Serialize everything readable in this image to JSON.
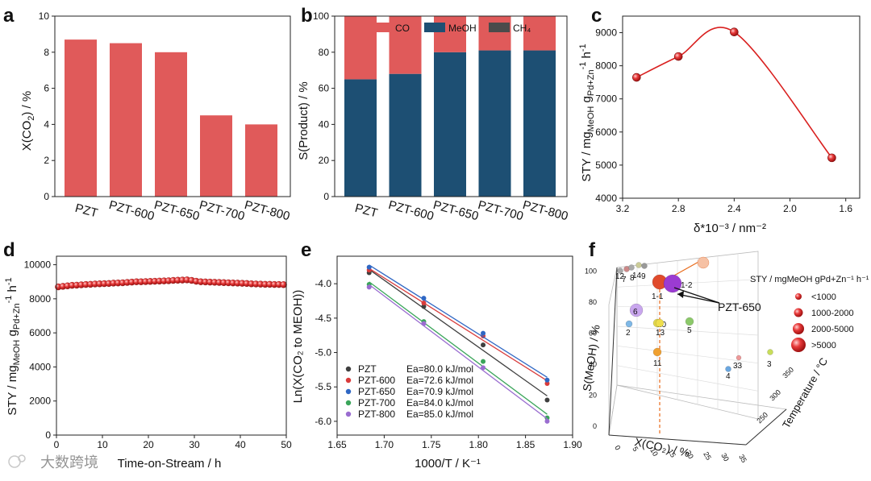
{
  "colors": {
    "red": "#e05a5a",
    "navy": "#1d4f73",
    "gray": "#4b4b4b",
    "ball": "#d9201f"
  },
  "watermark": "大数跨境",
  "chart_data": [
    {
      "id": "a",
      "panel_label": "a",
      "type": "bar",
      "categories": [
        "PZT",
        "PZT-600",
        "PZT-650",
        "PZT-700",
        "PZT-800"
      ],
      "values": [
        8.7,
        8.5,
        8.0,
        4.5,
        4.0
      ],
      "ylabel": "X(CO2) / %",
      "ylim": [
        0,
        10
      ],
      "yticks": [
        "0",
        "2",
        "4",
        "6",
        "8",
        "10"
      ]
    },
    {
      "id": "b",
      "panel_label": "b",
      "type": "bar",
      "stacked": true,
      "categories": [
        "PZT",
        "PZT-600",
        "PZT-650",
        "PZT-700",
        "PZT-800"
      ],
      "series": [
        {
          "name": "CO",
          "values": [
            35,
            32,
            20,
            19,
            19
          ]
        },
        {
          "name": "MeOH",
          "values": [
            65,
            68,
            80,
            81,
            81
          ]
        },
        {
          "name": "CH4",
          "values": [
            0,
            0,
            0,
            0,
            0
          ]
        }
      ],
      "legend": [
        "CO",
        "MeOH",
        "CH₄"
      ],
      "ylabel": "S(Product) / %",
      "ylim": [
        0,
        100
      ],
      "yticks": [
        "0",
        "20",
        "40",
        "60",
        "80",
        "100"
      ]
    },
    {
      "id": "c",
      "panel_label": "c",
      "type": "line",
      "x": [
        3.1,
        2.8,
        2.4,
        1.7
      ],
      "y": [
        7650,
        8280,
        9020,
        5220
      ],
      "xlabel": "δ*10⁻³ / nm⁻²",
      "ylabel": "STY / mgMeOH gPd+Zn⁻¹ h⁻¹",
      "xlim": [
        3.2,
        1.5
      ],
      "ylim": [
        4000,
        9500
      ],
      "xticks": [
        "3.2",
        "2.8",
        "2.4",
        "2.0",
        "1.6"
      ],
      "yticks": [
        "4000",
        "5000",
        "6000",
        "7000",
        "8000",
        "9000"
      ]
    },
    {
      "id": "d",
      "panel_label": "d",
      "type": "scatter",
      "x": [
        0,
        1,
        2,
        3,
        4,
        5,
        6,
        7,
        8,
        9,
        10,
        11,
        12,
        13,
        14,
        15,
        16,
        17,
        18,
        19,
        20,
        21,
        22,
        23,
        24,
        25,
        26,
        27,
        28,
        29,
        30,
        31,
        32,
        33,
        34,
        35,
        36,
        37,
        38,
        39,
        40,
        41,
        42,
        43,
        44,
        45,
        46,
        47,
        48,
        49
      ],
      "y": [
        8700,
        8730,
        8760,
        8790,
        8800,
        8820,
        8840,
        8850,
        8870,
        8880,
        8890,
        8900,
        8920,
        8930,
        8940,
        8960,
        8980,
        9000,
        9000,
        9010,
        9020,
        9030,
        9040,
        9050,
        9060,
        9080,
        9090,
        9100,
        9110,
        9080,
        9030,
        9000,
        8990,
        8980,
        8970,
        8960,
        8950,
        8940,
        8930,
        8920,
        8910,
        8900,
        8880,
        8870,
        8860,
        8850,
        8850,
        8840,
        8840,
        8830
      ],
      "xlabel": "Time-on-Stream / h",
      "ylabel": "STY / mgMeOH gPd+Zn⁻¹ h⁻¹",
      "xlim": [
        0,
        50
      ],
      "ylim": [
        0,
        10500
      ],
      "xticks": [
        "0",
        "10",
        "20",
        "30",
        "40",
        "50"
      ],
      "yticks": [
        "0",
        "2000",
        "4000",
        "6000",
        "8000",
        "10000"
      ]
    },
    {
      "id": "e",
      "panel_label": "e",
      "type": "scatter",
      "x": [
        1.684,
        1.742,
        1.805,
        1.873
      ],
      "series": [
        {
          "name": "PZT",
          "ea": "Ea=80.0 kJ/mol",
          "color": "#3f3f3f",
          "values": [
            -3.84,
            -4.33,
            -4.89,
            -5.69
          ]
        },
        {
          "name": "PZT-600",
          "ea": "Ea=72.6 kJ/mol",
          "color": "#d93b3b",
          "values": [
            -3.8,
            -4.28,
            -4.76,
            -5.45
          ]
        },
        {
          "name": "PZT-650",
          "ea": "Ea=70.9 kJ/mol",
          "color": "#2f67c4",
          "values": [
            -3.76,
            -4.21,
            -4.72,
            -5.4
          ]
        },
        {
          "name": "PZT-700",
          "ea": "Ea=84.0 kJ/mol",
          "color": "#3aa55a",
          "values": [
            -4.01,
            -4.55,
            -5.13,
            -5.95
          ]
        },
        {
          "name": "PZT-800",
          "ea": "Ea=85.0 kJ/mol",
          "color": "#9a6dd0",
          "values": [
            -4.05,
            -4.58,
            -5.22,
            -6.0
          ]
        }
      ],
      "xlabel": "1000/T / K⁻¹",
      "ylabel": "Ln(X(CO₂ to MEOH))",
      "xlim": [
        1.65,
        1.9
      ],
      "ylim": [
        -6.2,
        -3.6
      ],
      "xticks": [
        "1.65",
        "1.70",
        "1.75",
        "1.80",
        "1.85",
        "1.90"
      ],
      "yticks": [
        "-4.0",
        "-4.5",
        "-5.0",
        "-5.5",
        "-6.0"
      ]
    },
    {
      "id": "f",
      "panel_label": "f",
      "type": "scatter",
      "xlabel": "X(CO₂) / %",
      "ylabel": "S(MeOH) / %",
      "zlabel": "Temperature / °C",
      "legend_title": "STY / mgMeOH gPd+Zn⁻¹ h⁻¹",
      "size_legend": [
        "<1000",
        "1000-2000",
        "2000-5000",
        ">5000"
      ],
      "annotation": "PZT-650",
      "x_ticks": [
        "0",
        "5",
        "10",
        "15",
        "20",
        "25",
        "30",
        "35"
      ],
      "y_ticks": [
        "0",
        "20",
        "40",
        "60",
        "80",
        "100"
      ],
      "z_ticks": [
        "250",
        "300",
        "350"
      ],
      "points": [
        {
          "label": "1-1",
          "size": 4
        },
        {
          "label": "1-2",
          "size": 4
        },
        {
          "label": "2",
          "size": 1
        },
        {
          "label": "3",
          "size": 1
        },
        {
          "label": "4",
          "size": 1
        },
        {
          "label": "5",
          "size": 2
        },
        {
          "label": "6",
          "size": 3
        },
        {
          "label": "7",
          "size": 1
        },
        {
          "label": "8",
          "size": 1
        },
        {
          "label": "9",
          "size": 1
        },
        {
          "label": "10",
          "size": 2
        },
        {
          "label": "11",
          "size": 2
        },
        {
          "label": "12",
          "size": 1
        },
        {
          "label": "13",
          "size": 2
        },
        {
          "label": "14",
          "size": 1
        },
        {
          "label": "33",
          "size": 1
        }
      ]
    }
  ]
}
